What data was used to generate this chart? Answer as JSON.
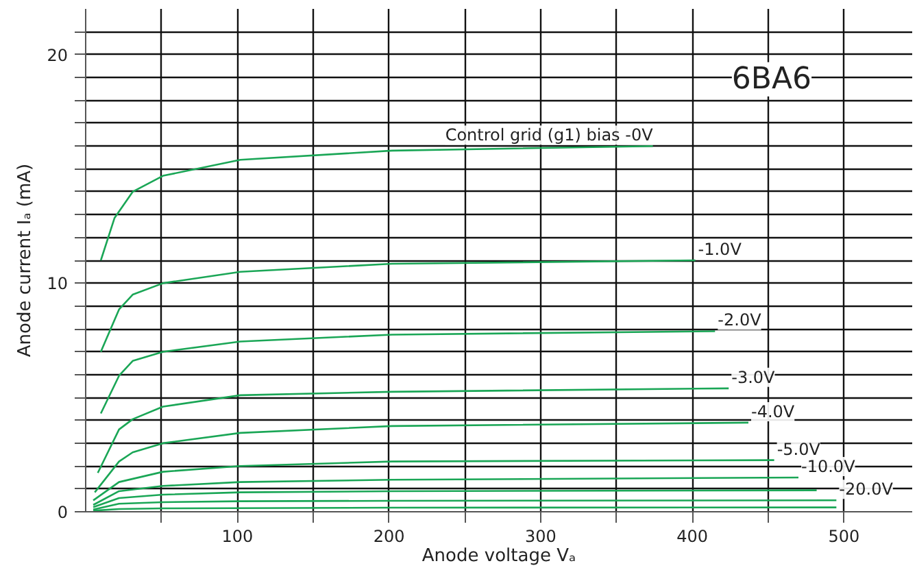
{
  "chart_data": {
    "type": "line",
    "title": "6BA6",
    "xlabel": "Anode voltage Vₐ",
    "ylabel": "Anode current Iₐ (mA)",
    "xlim": [
      0,
      545
    ],
    "ylim": [
      0,
      22
    ],
    "xticks": [
      {
        "value": 50,
        "label": null
      },
      100,
      {
        "value": 150,
        "label": null
      },
      200,
      {
        "value": 250,
        "label": null
      },
      300,
      {
        "value": 350,
        "label": null
      },
      400,
      {
        "value": 450,
        "label": null
      },
      500
    ],
    "yticks": [
      0,
      {
        "value": 1,
        "label": null
      },
      {
        "value": 2,
        "label": null
      },
      {
        "value": 3,
        "label": null
      },
      {
        "value": 4,
        "label": null
      },
      {
        "value": 5,
        "label": null
      },
      {
        "value": 6,
        "label": null
      },
      {
        "value": 7,
        "label": null
      },
      {
        "value": 8,
        "label": null
      },
      {
        "value": 9,
        "label": null
      },
      10,
      {
        "value": 11,
        "label": null
      },
      {
        "value": 12,
        "label": null
      },
      {
        "value": 13,
        "label": null
      },
      {
        "value": 14,
        "label": null
      },
      {
        "value": 15,
        "label": null
      },
      {
        "value": 16,
        "label": null
      },
      {
        "value": 17,
        "label": null
      },
      {
        "value": 18,
        "label": null
      },
      {
        "value": 19,
        "label": null
      },
      20,
      {
        "value": 21,
        "label": null
      }
    ],
    "grid": true,
    "marker": "none",
    "line_style": "solid",
    "series": [
      {
        "name": "Control grid (g1) bias -0V",
        "color": "#1aa656",
        "x": [
          10,
          19,
          31,
          51,
          102,
          202,
          374
        ],
        "values": [
          11.0,
          12.85,
          14.0,
          14.7,
          15.4,
          15.8,
          16.0
        ]
      },
      {
        "name": "-1.0V",
        "color": "#1aa656",
        "x": [
          10,
          22,
          31,
          51,
          102,
          202,
          402
        ],
        "values": [
          7.0,
          8.85,
          9.5,
          10.0,
          10.5,
          10.85,
          11.0
        ]
      },
      {
        "name": "-2.0V",
        "color": "#1aa656",
        "x": [
          10,
          22,
          31,
          51,
          102,
          202,
          415
        ],
        "values": [
          4.3,
          5.95,
          6.6,
          7.0,
          7.45,
          7.75,
          7.9
        ]
      },
      {
        "name": "-3.0V",
        "color": "#1aa656",
        "x": [
          8,
          22,
          31,
          51,
          102,
          202,
          424
        ],
        "values": [
          1.7,
          3.6,
          4.05,
          4.6,
          5.1,
          5.25,
          5.4
        ]
      },
      {
        "name": "-4.0V",
        "color": "#1aa656",
        "x": [
          6,
          22,
          31,
          51,
          102,
          202,
          437
        ],
        "values": [
          0.85,
          2.2,
          2.6,
          3.0,
          3.45,
          3.75,
          3.9
        ]
      },
      {
        "name": "-5.0V",
        "color": "#1aa656",
        "x": [
          5,
          22,
          51,
          102,
          202,
          454
        ],
        "values": [
          0.5,
          1.3,
          1.75,
          2.0,
          2.2,
          2.26
        ]
      },
      {
        "name": "-10.0V",
        "color": "#1aa656",
        "x": [
          5,
          22,
          51,
          102,
          202,
          470
        ],
        "values": [
          0.3,
          0.9,
          1.13,
          1.3,
          1.4,
          1.5
        ]
      },
      {
        "color": "#1aa656",
        "x": [
          5,
          22,
          51,
          102,
          202,
          482
        ],
        "values": [
          0.2,
          0.6,
          0.75,
          0.85,
          0.9,
          0.94
        ]
      },
      {
        "name": "-20.0V",
        "color": "#1aa656",
        "x": [
          5,
          22,
          51,
          102,
          202,
          495
        ],
        "values": [
          0.1,
          0.35,
          0.42,
          0.46,
          0.48,
          0.5
        ]
      },
      {
        "color": "#1aa656",
        "x": [
          5,
          22,
          51,
          202,
          495
        ],
        "values": [
          0.05,
          0.12,
          0.15,
          0.18,
          0.19
        ]
      }
    ]
  }
}
